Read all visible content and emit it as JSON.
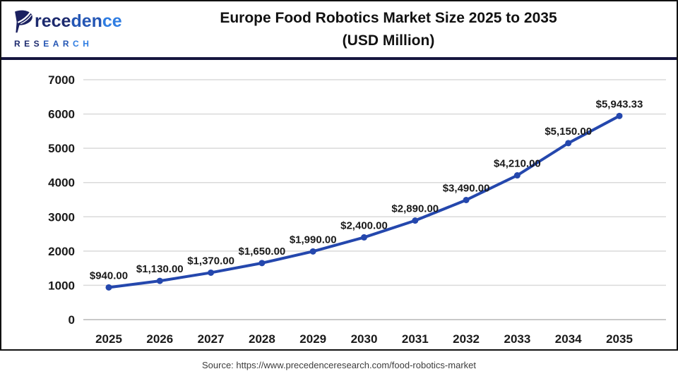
{
  "header": {
    "logo": {
      "icon": "precedence-leaf-logo",
      "word_parts": [
        "rece",
        "den",
        "ce"
      ],
      "subtitle_parts": [
        "RES",
        "EAR",
        "CH"
      ]
    },
    "title_line1": "Europe Food Robotics Market Size 2025 to 2035",
    "title_line2": "(USD Million)"
  },
  "chart_data": {
    "type": "line",
    "title": "Europe Food Robotics Market Size 2025 to 2035 (USD Million)",
    "categories": [
      "2025",
      "2026",
      "2027",
      "2028",
      "2029",
      "2030",
      "2031",
      "2032",
      "2033",
      "2034",
      "2035"
    ],
    "values": [
      940,
      1130,
      1370,
      1650,
      1990,
      2400,
      2890,
      3490,
      4210,
      5150,
      5943.33
    ],
    "labels": [
      "$940.00",
      "$1,130.00",
      "$1,370.00",
      "$1,650.00",
      "$1,990.00",
      "$2,400.00",
      "$2,890.00",
      "$3,490.00",
      "$4,210.00",
      "$5,150.00",
      "$5,943.33"
    ],
    "xlabel": "",
    "ylabel": "",
    "ylim": [
      0,
      7000
    ],
    "yticks": [
      0,
      1000,
      2000,
      3000,
      4000,
      5000,
      6000,
      7000
    ],
    "grid": "horizontal",
    "legend": "none",
    "line_color": "#2447ad",
    "grid_color": "#dadada",
    "baseline_color": "#c9c9c9",
    "tick_label_color": "#1a1a1a",
    "data_label_color": "#1a1a1a"
  },
  "footer": {
    "source": "Source: https://www.precedenceresearch.com/food-robotics-market"
  }
}
